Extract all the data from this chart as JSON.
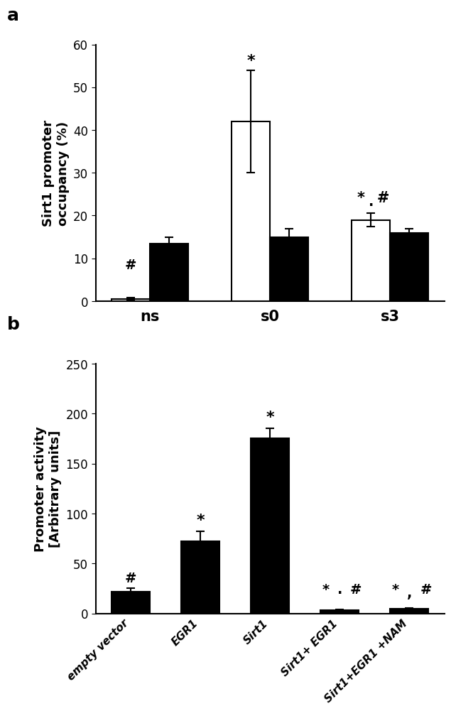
{
  "panel_a": {
    "groups": [
      "ns",
      "s0",
      "s3"
    ],
    "egr1_values": [
      0.5,
      42.0,
      19.0
    ],
    "egr1_errors": [
      0.3,
      12.0,
      1.5
    ],
    "sirt1_values": [
      13.5,
      15.0,
      16.0
    ],
    "sirt1_errors": [
      1.5,
      2.0,
      1.0
    ],
    "egr1_color": "white",
    "sirt1_color": "black",
    "ylabel": "Sirt1 promoter\noccupancy (%)",
    "ylim": [
      0,
      60
    ],
    "yticks": [
      0,
      10,
      20,
      30,
      40,
      50,
      60
    ],
    "bar_width": 0.32,
    "bar_edge_color": "black",
    "bar_edge_width": 1.5
  },
  "panel_b": {
    "categories": [
      "empty vector",
      "EGR1",
      "Sirt1",
      "Sirt1+ EGR1",
      "Sirt1+EGR1 +NAM"
    ],
    "values": [
      22.0,
      72.0,
      175.0,
      3.0,
      4.5
    ],
    "errors": [
      3.0,
      10.0,
      10.0,
      0.8,
      1.2
    ],
    "bar_color": "black",
    "ylabel": "Promoter activity\n[Arbitrary units]",
    "ylim": [
      0,
      250
    ],
    "yticks": [
      0,
      50,
      100,
      150,
      200,
      250
    ],
    "bar_edge_color": "black",
    "bar_edge_width": 1.5,
    "bar_width": 0.55
  },
  "figure_bg": "white",
  "panel_label_fontsize": 18,
  "axis_label_fontsize": 13,
  "tick_fontsize": 12,
  "annotation_fontsize": 14,
  "group_label_fontsize": 15
}
